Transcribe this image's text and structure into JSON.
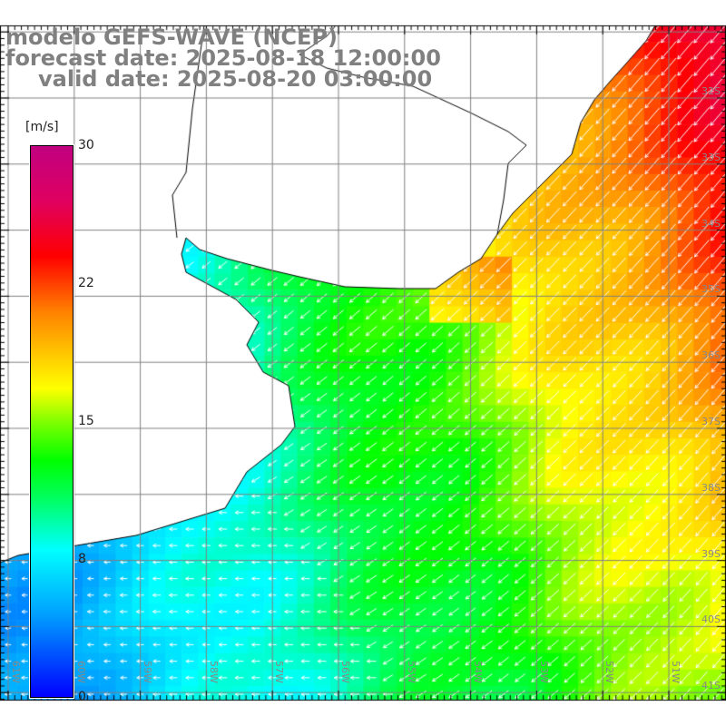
{
  "title": {
    "model": "modelo GEFS-WAVE (NCEP)",
    "forecast": "forecast date: 2025-08-18 12:00:00",
    "valid": "valid date: 2025-08-20 03:00:00"
  },
  "colorbar": {
    "units": "[m/s]",
    "min": 0,
    "max": 30,
    "labels": [
      "30",
      "22",
      "15",
      "8",
      "0"
    ],
    "values": [
      30,
      22,
      15,
      8,
      0
    ]
  },
  "latitude_labels": [
    "32S",
    "33S",
    "34S",
    "35S",
    "36S",
    "37S",
    "38S",
    "39S",
    "40S",
    "41S"
  ],
  "longitude_labels": [
    "61W",
    "60W",
    "59W",
    "58W",
    "57W",
    "56W",
    "55W",
    "54W",
    "53W",
    "52W",
    "51W"
  ],
  "colors": {
    "land": "#ffffff",
    "grid": "#808080",
    "arrows": "#ffffff",
    "text": "#808080"
  }
}
